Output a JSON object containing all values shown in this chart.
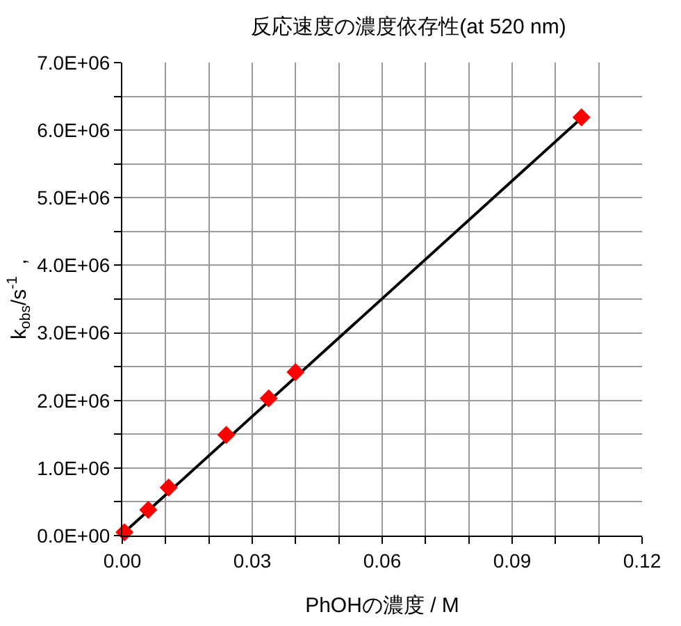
{
  "chart_data": {
    "type": "scatter",
    "title": "反応速度の濃度依存性(at 520 nm)",
    "xlabel": "PhOHの濃度 / M",
    "ylabel": "k$_{obs}$/s$^{-1}$  ,",
    "xlim": [
      0,
      0.12
    ],
    "xticks": [
      {
        "value": 0,
        "label": "0.00"
      },
      {
        "value": 0.01,
        "label": null
      },
      {
        "value": 0.02,
        "label": null
      },
      {
        "value": 0.03,
        "label": "0.03"
      },
      {
        "value": 0.04,
        "label": null
      },
      {
        "value": 0.05,
        "label": null
      },
      {
        "value": 0.06,
        "label": "0.06"
      },
      {
        "value": 0.07,
        "label": null
      },
      {
        "value": 0.08,
        "label": null
      },
      {
        "value": 0.09,
        "label": "0.09"
      },
      {
        "value": 0.1,
        "label": null
      },
      {
        "value": 0.11,
        "label": null
      },
      {
        "value": 0.12,
        "label": "0.12"
      }
    ],
    "ylim": [
      0,
      7000000
    ],
    "yticks": [
      {
        "value": 0,
        "label": "0.0E+00"
      },
      {
        "value": 500000,
        "label": null
      },
      {
        "value": 1000000,
        "label": "1.0E+06"
      },
      {
        "value": 1500000,
        "label": null
      },
      {
        "value": 2000000,
        "label": "2.0E+06"
      },
      {
        "value": 2500000,
        "label": null
      },
      {
        "value": 3000000,
        "label": "3.0E+06"
      },
      {
        "value": 3500000,
        "label": null
      },
      {
        "value": 4000000,
        "label": "4.0E+06"
      },
      {
        "value": 4500000,
        "label": null
      },
      {
        "value": 5000000,
        "label": "5.0E+06"
      },
      {
        "value": 5500000,
        "label": null
      },
      {
        "value": 6000000,
        "label": "6.0E+06"
      },
      {
        "value": 6500000,
        "label": null
      },
      {
        "value": 7000000,
        "label": "7.0E+06"
      }
    ],
    "grid": true,
    "series": [
      {
        "type": "line",
        "color": "#000000",
        "marker": "none",
        "line_style": "solid",
        "x": [
          0.0005,
          0.106
        ],
        "values": [
          50000,
          6180000
        ]
      },
      {
        "color": "#ff0000",
        "marker": "diamond",
        "x": [
          0.0005,
          0.006,
          0.0107,
          0.024,
          0.0338,
          0.04,
          0.106
        ],
        "values": [
          50000,
          380000,
          710000,
          1490000,
          2030000,
          2420000,
          6190000
        ]
      }
    ]
  }
}
